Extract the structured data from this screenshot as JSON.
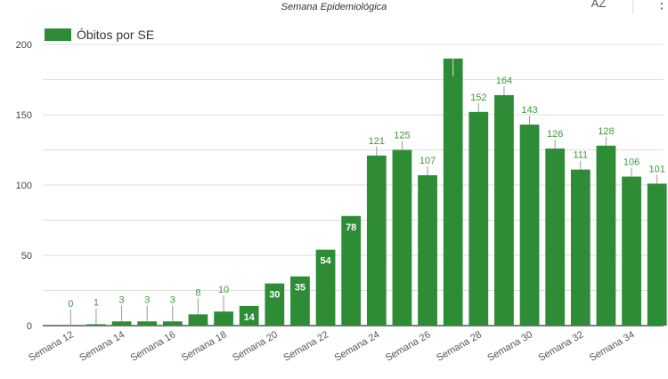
{
  "header": {
    "title": "Semana Epidemiológica",
    "sort_button": "AZ",
    "more_button": "⋮"
  },
  "legend": {
    "label": "Óbitos por SE",
    "color": "#2e8b36"
  },
  "chart_data": {
    "type": "bar",
    "title": "Semana Epidemiológica",
    "xlabel": "",
    "ylabel": "",
    "ylim": [
      0,
      200
    ],
    "yticks": [
      0,
      50,
      100,
      150,
      200
    ],
    "grid": true,
    "legend_position": "top",
    "categories": [
      "Semana 12",
      "Semana 13",
      "Semana 14",
      "Semana 15",
      "Semana 16",
      "Semana 17",
      "Semana 18",
      "Semana 19",
      "Semana 20",
      "Semana 21",
      "Semana 22",
      "Semana 23",
      "Semana 24",
      "Semana 25",
      "Semana 26",
      "Semana 27",
      "Semana 28",
      "Semana 29",
      "Semana 30",
      "Semana 31",
      "Semana 32",
      "Semana 33",
      "Semana 34",
      "Semana 35"
    ],
    "xtick_labels_shown": [
      "Semana 12",
      "Semana 14",
      "Semana 16",
      "Semana 18",
      "Semana 20",
      "Semana 22",
      "Semana 24",
      "Semana 26",
      "Semana 28",
      "Semana 30",
      "Semana 32",
      "Semana 34"
    ],
    "series": [
      {
        "name": "Óbitos por SE",
        "color": "#2e8b36",
        "values": [
          0,
          1,
          3,
          3,
          3,
          8,
          10,
          14,
          30,
          35,
          54,
          78,
          121,
          125,
          107,
          190,
          152,
          164,
          143,
          126,
          111,
          128,
          106,
          101
        ],
        "labels": [
          "0",
          "1",
          "3",
          "3",
          "3",
          "8",
          "10",
          "14",
          "30",
          "35",
          "54",
          "78",
          "121",
          "125",
          "107",
          "",
          "152",
          "164",
          "143",
          "126",
          "111",
          "128",
          "106",
          "101"
        ]
      }
    ]
  }
}
